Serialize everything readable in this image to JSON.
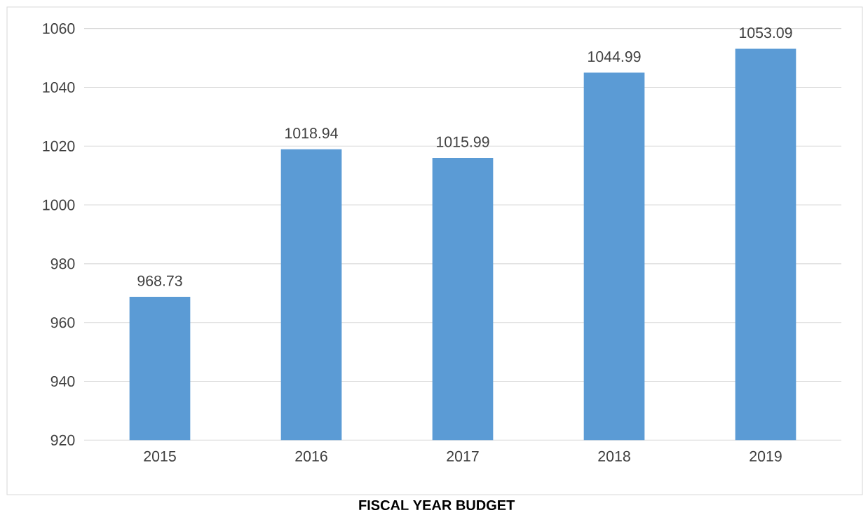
{
  "chart_data": {
    "type": "bar",
    "title": "FISCAL YEAR BUDGET",
    "categories": [
      "2015",
      "2016",
      "2017",
      "2018",
      "2019"
    ],
    "values": [
      968.73,
      1018.94,
      1015.99,
      1044.99,
      1053.09
    ],
    "color": "#5b9bd5",
    "ylim": [
      920,
      1060
    ],
    "yticks": [
      920,
      940,
      960,
      980,
      1000,
      1020,
      1040,
      1060
    ],
    "grid": "y",
    "data_labels": true
  }
}
